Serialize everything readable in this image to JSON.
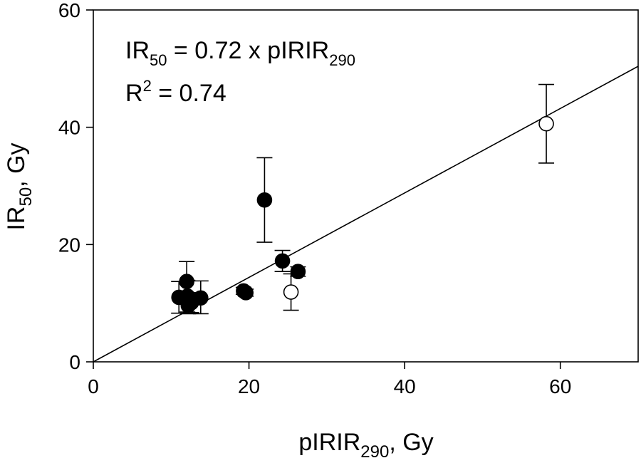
{
  "chart_data": {
    "type": "scatter",
    "xlabel": "pIRIR290, Gy",
    "ylabel": "IR50, Gy",
    "xlim": [
      0,
      70
    ],
    "ylim": [
      0,
      60
    ],
    "x_ticks": [
      0,
      20,
      40,
      60
    ],
    "y_ticks": [
      0,
      20,
      40,
      60
    ],
    "annotation_equation": "IR50 = 0.72 x pIRIR290",
    "annotation_r2": "R2 = 0.74",
    "fit_line": {
      "slope": 0.72,
      "intercept": 0,
      "x_range": [
        0,
        70
      ]
    },
    "series": [
      {
        "marker": "filled",
        "points": [
          {
            "x": 11.0,
            "y": 11.0,
            "yerr_low": 8.3,
            "yerr_high": 13.7
          },
          {
            "x": 12.0,
            "y": 13.7,
            "yerr_low": 10.5,
            "yerr_high": 17.1
          },
          {
            "x": 12.1,
            "y": 11.2,
            "yerr_low": 8.5,
            "yerr_high": 13.9
          },
          {
            "x": 12.2,
            "y": 9.6,
            "yerr_low": 8.2,
            "yerr_high": 11.0
          },
          {
            "x": 12.6,
            "y": 10.1,
            "yerr_low": 8.4,
            "yerr_high": 11.8
          },
          {
            "x": 13.8,
            "y": 10.9,
            "yerr_low": 8.2,
            "yerr_high": 13.8
          },
          {
            "x": 19.3,
            "y": 12.1,
            "yerr_low": 11.5,
            "yerr_high": 12.7
          },
          {
            "x": 19.6,
            "y": 11.8,
            "yerr_low": 11.2,
            "yerr_high": 12.4
          },
          {
            "x": 22.0,
            "y": 27.6,
            "yerr_low": 20.4,
            "yerr_high": 34.8
          },
          {
            "x": 24.3,
            "y": 17.2,
            "yerr_low": 15.4,
            "yerr_high": 19.0
          },
          {
            "x": 26.3,
            "y": 15.4,
            "yerr_low": 14.6,
            "yerr_high": 16.2
          }
        ]
      },
      {
        "marker": "open",
        "points": [
          {
            "x": 25.4,
            "y": 11.9,
            "yerr_low": 8.8,
            "yerr_high": 15.0
          },
          {
            "x": 58.2,
            "y": 40.6,
            "yerr_low": 33.9,
            "yerr_high": 47.3
          }
        ]
      }
    ]
  }
}
